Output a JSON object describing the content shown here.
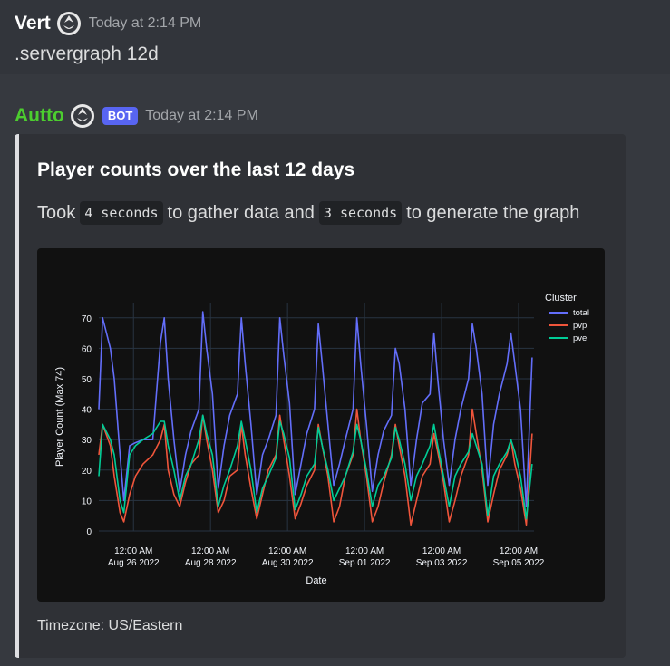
{
  "message_user": {
    "username": "Vert",
    "timestamp": "Today at 2:14 PM",
    "content": ".servergraph 12d"
  },
  "message_bot": {
    "username": "Autto",
    "bot_tag": "BOT",
    "timestamp": "Today at 2:14 PM",
    "embed": {
      "title": "Player counts over the last 12 days",
      "desc_part1": "Took",
      "code1": "4 seconds",
      "desc_part2": "to gather data and",
      "code2": "3 seconds",
      "desc_part3": "to generate the graph",
      "footer": "Timezone: US/Eastern"
    }
  },
  "chart_data": {
    "type": "line",
    "xlabel": "Date",
    "ylabel": "Player Count (Max 74)",
    "ylim": [
      0,
      75
    ],
    "y_ticks": [
      0,
      10,
      20,
      30,
      40,
      50,
      60,
      70
    ],
    "x_tick_labels": [
      {
        "time": "12:00 AM",
        "date": "Aug 26 2022"
      },
      {
        "time": "12:00 AM",
        "date": "Aug 28 2022"
      },
      {
        "time": "12:00 AM",
        "date": "Aug 30 2022"
      },
      {
        "time": "12:00 AM",
        "date": "Sep 01 2022"
      },
      {
        "time": "12:00 AM",
        "date": "Sep 03 2022"
      },
      {
        "time": "12:00 AM",
        "date": "Sep 05 2022"
      }
    ],
    "x_range_days": [
      -0.9,
      10.4
    ],
    "tick_days": [
      0,
      2,
      4,
      6,
      8,
      10
    ],
    "legend_title": "Cluster",
    "legend_position": "top-right",
    "grid": true,
    "series": [
      {
        "name": "total",
        "color": "#636efa",
        "x_days": [
          -0.9,
          -0.8,
          -0.6,
          -0.5,
          -0.35,
          -0.25,
          -0.1,
          0.05,
          0.25,
          0.5,
          0.7,
          0.8,
          0.9,
          1.05,
          1.2,
          1.35,
          1.5,
          1.7,
          1.8,
          1.9,
          2.05,
          2.2,
          2.35,
          2.5,
          2.7,
          2.8,
          2.9,
          3.05,
          3.2,
          3.35,
          3.5,
          3.7,
          3.8,
          3.9,
          4.05,
          4.2,
          4.35,
          4.5,
          4.7,
          4.8,
          4.9,
          5.05,
          5.2,
          5.35,
          5.5,
          5.7,
          5.8,
          5.9,
          6.05,
          6.2,
          6.35,
          6.5,
          6.7,
          6.8,
          6.9,
          7.05,
          7.2,
          7.35,
          7.5,
          7.7,
          7.8,
          7.9,
          8.05,
          8.2,
          8.35,
          8.5,
          8.7,
          8.8,
          8.9,
          9.05,
          9.2,
          9.35,
          9.5,
          9.7,
          9.8,
          9.9,
          10.05,
          10.2,
          10.35
        ],
        "values": [
          40,
          70,
          60,
          50,
          25,
          10,
          28,
          29,
          30,
          30,
          62,
          70,
          50,
          30,
          13,
          25,
          33,
          40,
          72,
          60,
          45,
          14,
          28,
          38,
          45,
          70,
          55,
          35,
          12,
          25,
          30,
          38,
          70,
          58,
          42,
          12,
          22,
          32,
          40,
          68,
          55,
          35,
          15,
          22,
          30,
          40,
          70,
          55,
          35,
          13,
          25,
          33,
          38,
          60,
          55,
          40,
          15,
          30,
          42,
          45,
          65,
          50,
          30,
          15,
          30,
          40,
          50,
          68,
          60,
          45,
          15,
          35,
          45,
          55,
          65,
          55,
          40,
          8,
          57
        ]
      },
      {
        "name": "pvp",
        "color": "#ef553b",
        "x_days": [
          -0.9,
          -0.8,
          -0.6,
          -0.5,
          -0.35,
          -0.25,
          -0.1,
          0.05,
          0.25,
          0.5,
          0.7,
          0.8,
          0.9,
          1.05,
          1.2,
          1.35,
          1.5,
          1.7,
          1.8,
          1.9,
          2.05,
          2.2,
          2.35,
          2.5,
          2.7,
          2.8,
          2.9,
          3.05,
          3.2,
          3.35,
          3.5,
          3.7,
          3.8,
          3.9,
          4.05,
          4.2,
          4.35,
          4.5,
          4.7,
          4.8,
          4.9,
          5.05,
          5.2,
          5.35,
          5.5,
          5.7,
          5.8,
          5.9,
          6.05,
          6.2,
          6.35,
          6.5,
          6.7,
          6.8,
          6.9,
          7.05,
          7.2,
          7.35,
          7.5,
          7.7,
          7.8,
          7.9,
          8.05,
          8.2,
          8.35,
          8.5,
          8.7,
          8.8,
          8.9,
          9.05,
          9.2,
          9.35,
          9.5,
          9.7,
          9.8,
          9.9,
          10.05,
          10.2,
          10.35
        ],
        "values": [
          25,
          35,
          28,
          18,
          6,
          3,
          12,
          18,
          22,
          25,
          30,
          35,
          20,
          12,
          8,
          16,
          22,
          25,
          38,
          30,
          20,
          6,
          10,
          18,
          20,
          35,
          25,
          14,
          4,
          12,
          20,
          25,
          38,
          30,
          18,
          4,
          9,
          15,
          20,
          35,
          28,
          18,
          3,
          8,
          18,
          25,
          40,
          30,
          18,
          3,
          8,
          16,
          25,
          35,
          28,
          18,
          2,
          10,
          18,
          22,
          32,
          26,
          16,
          3,
          10,
          18,
          25,
          40,
          32,
          20,
          3,
          12,
          20,
          25,
          30,
          22,
          14,
          2,
          32
        ]
      },
      {
        "name": "pve",
        "color": "#00cc96",
        "x_days": [
          -0.9,
          -0.8,
          -0.6,
          -0.5,
          -0.35,
          -0.25,
          -0.1,
          0.05,
          0.25,
          0.5,
          0.7,
          0.8,
          0.9,
          1.05,
          1.2,
          1.35,
          1.5,
          1.7,
          1.8,
          1.9,
          2.05,
          2.2,
          2.35,
          2.5,
          2.7,
          2.8,
          2.9,
          3.05,
          3.2,
          3.35,
          3.5,
          3.7,
          3.8,
          3.9,
          4.05,
          4.2,
          4.35,
          4.5,
          4.7,
          4.8,
          4.9,
          5.05,
          5.2,
          5.35,
          5.5,
          5.7,
          5.8,
          5.9,
          6.05,
          6.2,
          6.35,
          6.5,
          6.7,
          6.8,
          6.9,
          7.05,
          7.2,
          7.35,
          7.5,
          7.7,
          7.8,
          7.9,
          8.05,
          8.2,
          8.35,
          8.5,
          8.7,
          8.8,
          8.9,
          9.05,
          9.2,
          9.35,
          9.5,
          9.7,
          9.8,
          9.9,
          10.05,
          10.2,
          10.35
        ],
        "values": [
          18,
          35,
          30,
          25,
          10,
          6,
          25,
          28,
          30,
          32,
          36,
          36,
          28,
          20,
          10,
          18,
          22,
          30,
          38,
          32,
          25,
          8,
          15,
          20,
          28,
          36,
          30,
          20,
          6,
          14,
          18,
          24,
          36,
          32,
          24,
          7,
          12,
          18,
          22,
          34,
          28,
          20,
          10,
          14,
          18,
          26,
          35,
          30,
          20,
          8,
          15,
          18,
          24,
          34,
          30,
          22,
          10,
          18,
          22,
          28,
          35,
          28,
          18,
          8,
          18,
          22,
          26,
          32,
          28,
          22,
          5,
          18,
          22,
          26,
          30,
          26,
          18,
          4,
          22
        ]
      }
    ]
  }
}
